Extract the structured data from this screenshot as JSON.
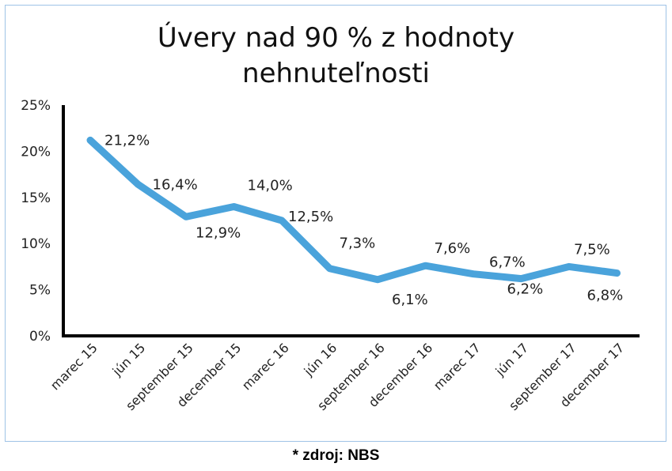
{
  "chart_data": {
    "type": "line",
    "title_lines": [
      "Úvery nad 90 % z hodnoty",
      "nehnuteľnosti"
    ],
    "categories": [
      "marec 15",
      "jún 15",
      "september 15",
      "december 15",
      "marec 16",
      "jún 16",
      "september 16",
      "december 16",
      "marec 17",
      "jún 17",
      "september 17",
      "december 17"
    ],
    "values": [
      21.2,
      16.4,
      12.9,
      14.0,
      12.5,
      7.3,
      6.1,
      7.6,
      6.7,
      6.2,
      7.5,
      6.8
    ],
    "data_labels": [
      "21,2%",
      "16,4%",
      "12,9%",
      "14,0%",
      "12,5%",
      "7,3%",
      "6,1%",
      "7,6%",
      "6,7%",
      "6,2%",
      "7,5%",
      "6,8%"
    ],
    "label_positions": [
      "right",
      "right",
      "below",
      "right-above",
      "above",
      "above",
      "below",
      "above",
      "above",
      "below",
      "above",
      "below"
    ],
    "yticks": [
      "0%",
      "5%",
      "10%",
      "15%",
      "20%",
      "25%"
    ],
    "ytick_values": [
      0,
      5,
      10,
      15,
      20,
      25
    ],
    "ylim": [
      0,
      25
    ],
    "line_color": "#4aa3db",
    "grid": false,
    "legend": "none"
  },
  "source_note": "* zdroj: NBS"
}
